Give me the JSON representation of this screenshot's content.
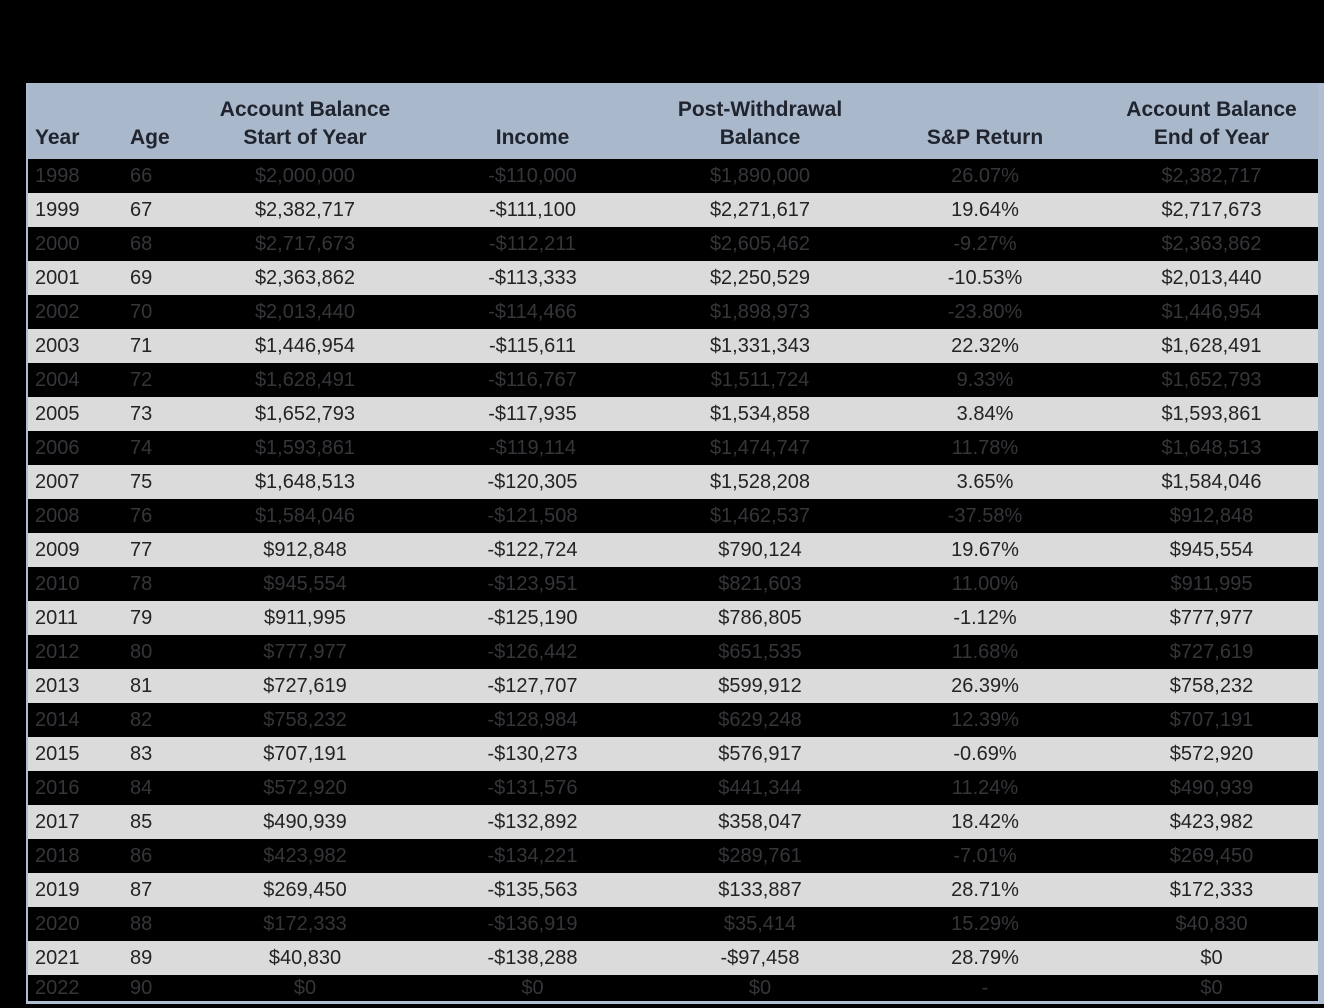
{
  "table": {
    "header": {
      "year": {
        "line1": "",
        "line2": "Year"
      },
      "age": {
        "line1": "",
        "line2": "Age"
      },
      "start": {
        "line1": "Account Balance",
        "line2": "Start of Year"
      },
      "income": {
        "line1": "",
        "line2": "Income"
      },
      "post": {
        "line1": "Post-Withdrawal",
        "line2": "Balance"
      },
      "sp": {
        "line1": "",
        "line2": "S&P Return"
      },
      "end": {
        "line1": "Account Balance",
        "line2": "End of Year"
      }
    },
    "rows": [
      {
        "year": "1998",
        "age": "66",
        "start": "$2,000,000",
        "income": "-$110,000",
        "post": "$1,890,000",
        "sp": "26.07%",
        "end": "$2,382,717"
      },
      {
        "year": "1999",
        "age": "67",
        "start": "$2,382,717",
        "income": "-$111,100",
        "post": "$2,271,617",
        "sp": "19.64%",
        "end": "$2,717,673"
      },
      {
        "year": "2000",
        "age": "68",
        "start": "$2,717,673",
        "income": "-$112,211",
        "post": "$2,605,462",
        "sp": "-9.27%",
        "end": "$2,363,862"
      },
      {
        "year": "2001",
        "age": "69",
        "start": "$2,363,862",
        "income": "-$113,333",
        "post": "$2,250,529",
        "sp": "-10.53%",
        "end": "$2,013,440"
      },
      {
        "year": "2002",
        "age": "70",
        "start": "$2,013,440",
        "income": "-$114,466",
        "post": "$1,898,973",
        "sp": "-23.80%",
        "end": "$1,446,954"
      },
      {
        "year": "2003",
        "age": "71",
        "start": "$1,446,954",
        "income": "-$115,611",
        "post": "$1,331,343",
        "sp": "22.32%",
        "end": "$1,628,491"
      },
      {
        "year": "2004",
        "age": "72",
        "start": "$1,628,491",
        "income": "-$116,767",
        "post": "$1,511,724",
        "sp": "9.33%",
        "end": "$1,652,793"
      },
      {
        "year": "2005",
        "age": "73",
        "start": "$1,652,793",
        "income": "-$117,935",
        "post": "$1,534,858",
        "sp": "3.84%",
        "end": "$1,593,861"
      },
      {
        "year": "2006",
        "age": "74",
        "start": "$1,593,861",
        "income": "-$119,114",
        "post": "$1,474,747",
        "sp": "11.78%",
        "end": "$1,648,513"
      },
      {
        "year": "2007",
        "age": "75",
        "start": "$1,648,513",
        "income": "-$120,305",
        "post": "$1,528,208",
        "sp": "3.65%",
        "end": "$1,584,046"
      },
      {
        "year": "2008",
        "age": "76",
        "start": "$1,584,046",
        "income": "-$121,508",
        "post": "$1,462,537",
        "sp": "-37.58%",
        "end": "$912,848"
      },
      {
        "year": "2009",
        "age": "77",
        "start": "$912,848",
        "income": "-$122,724",
        "post": "$790,124",
        "sp": "19.67%",
        "end": "$945,554"
      },
      {
        "year": "2010",
        "age": "78",
        "start": "$945,554",
        "income": "-$123,951",
        "post": "$821,603",
        "sp": "11.00%",
        "end": "$911,995"
      },
      {
        "year": "2011",
        "age": "79",
        "start": "$911,995",
        "income": "-$125,190",
        "post": "$786,805",
        "sp": "-1.12%",
        "end": "$777,977"
      },
      {
        "year": "2012",
        "age": "80",
        "start": "$777,977",
        "income": "-$126,442",
        "post": "$651,535",
        "sp": "11.68%",
        "end": "$727,619"
      },
      {
        "year": "2013",
        "age": "81",
        "start": "$727,619",
        "income": "-$127,707",
        "post": "$599,912",
        "sp": "26.39%",
        "end": "$758,232"
      },
      {
        "year": "2014",
        "age": "82",
        "start": "$758,232",
        "income": "-$128,984",
        "post": "$629,248",
        "sp": "12.39%",
        "end": "$707,191"
      },
      {
        "year": "2015",
        "age": "83",
        "start": "$707,191",
        "income": "-$130,273",
        "post": "$576,917",
        "sp": "-0.69%",
        "end": "$572,920"
      },
      {
        "year": "2016",
        "age": "84",
        "start": "$572,920",
        "income": "-$131,576",
        "post": "$441,344",
        "sp": "11.24%",
        "end": "$490,939"
      },
      {
        "year": "2017",
        "age": "85",
        "start": "$490,939",
        "income": "-$132,892",
        "post": "$358,047",
        "sp": "18.42%",
        "end": "$423,982"
      },
      {
        "year": "2018",
        "age": "86",
        "start": "$423,982",
        "income": "-$134,221",
        "post": "$289,761",
        "sp": "-7.01%",
        "end": "$269,450"
      },
      {
        "year": "2019",
        "age": "87",
        "start": "$269,450",
        "income": "-$135,563",
        "post": "$133,887",
        "sp": "28.71%",
        "end": "$172,333"
      },
      {
        "year": "2020",
        "age": "88",
        "start": "$172,333",
        "income": "-$136,919",
        "post": "$35,414",
        "sp": "15.29%",
        "end": "$40,830"
      },
      {
        "year": "2021",
        "age": "89",
        "start": "$40,830",
        "income": "-$138,288",
        "post": "-$97,458",
        "sp": "28.79%",
        "end": "$0"
      },
      {
        "year": "2022",
        "age": "90",
        "start": "$0",
        "income": "$0",
        "post": "$0",
        "sp": "-",
        "end": "$0"
      }
    ]
  },
  "colors": {
    "page_bg": "#000000",
    "header_bg": "#a9b8ca",
    "header_text": "#20242e",
    "row_dark_bg": "#000000",
    "row_dark_text": "#35353a",
    "row_light_bg": "#dbdbdb",
    "row_light_text": "#232323",
    "border": "#aebdcf"
  }
}
